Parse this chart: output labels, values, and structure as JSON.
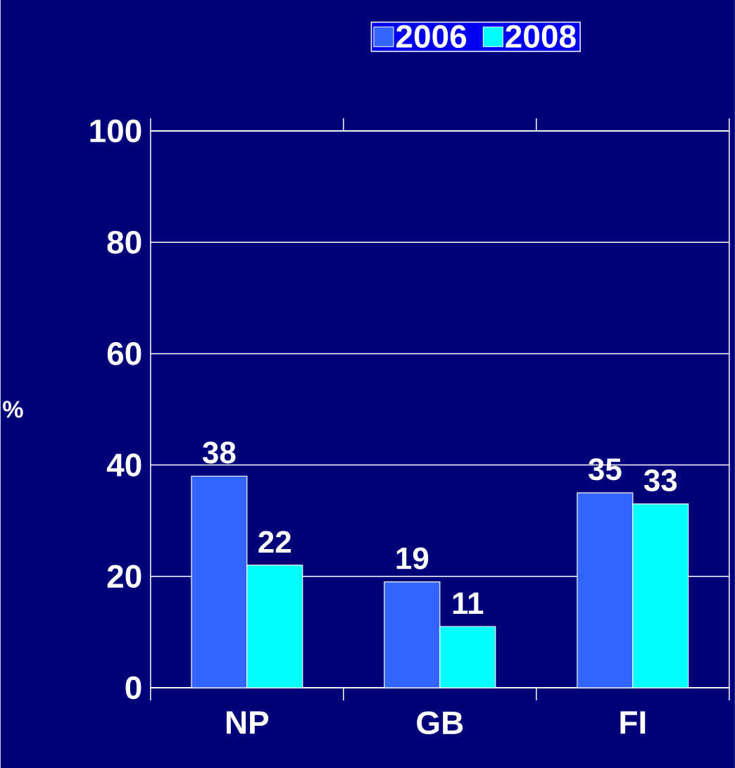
{
  "chart_data": {
    "type": "bar",
    "ylabel": "%",
    "categories": [
      "NP",
      "GB",
      "FI"
    ],
    "series": [
      {
        "name": "2006",
        "color": "#3366ff",
        "values": [
          38,
          19,
          35
        ]
      },
      {
        "name": "2008",
        "color": "#00ffff",
        "values": [
          22,
          11,
          33
        ]
      }
    ],
    "ylim": [
      0,
      100
    ],
    "yticks": [
      0,
      20,
      40,
      60,
      80,
      100
    ],
    "grid": "y",
    "legend": "top",
    "data_labels": true
  }
}
